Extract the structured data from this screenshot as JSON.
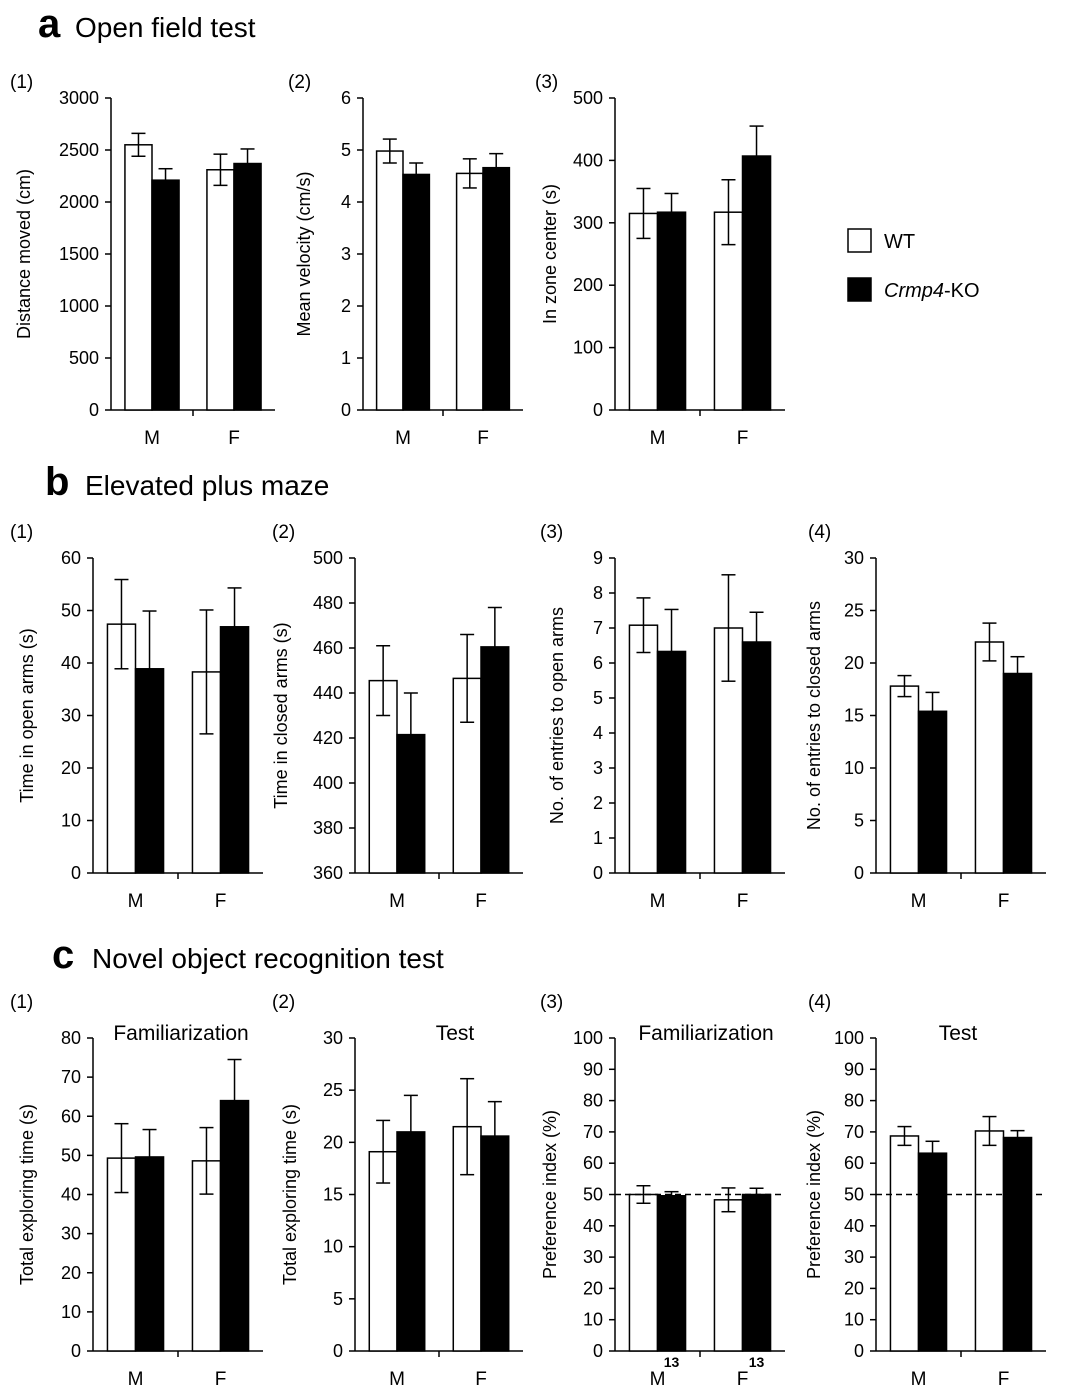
{
  "figure": {
    "sections": [
      {
        "letter": "a",
        "title": "Open field test"
      },
      {
        "letter": "b",
        "title": "Elevated plus maze"
      },
      {
        "letter": "c",
        "title": "Novel object recognition test"
      }
    ],
    "legend": {
      "wt": {
        "label": "WT",
        "color": "#ffffff"
      },
      "ko": {
        "label_italic": "Crmp4",
        "label_suffix": "-KO",
        "color": "#000000"
      }
    }
  },
  "chart_data": [
    {
      "type": "bar",
      "panel": "(1)",
      "section": "a",
      "ylabel": "Distance moved (cm)",
      "categories": [
        "M",
        "F"
      ],
      "ylim": [
        0,
        3000
      ],
      "yticks": [
        "0",
        "500",
        "1000",
        "1500",
        "2000",
        "2500",
        "3000"
      ],
      "series": [
        {
          "name": "WT",
          "values": [
            2550,
            2310
          ],
          "errors": [
            110,
            150
          ]
        },
        {
          "name": "Crmp4-KO",
          "values": [
            2210,
            2370
          ],
          "errors": [
            110,
            140
          ]
        }
      ]
    },
    {
      "type": "bar",
      "panel": "(2)",
      "section": "a",
      "ylabel": "Mean velocity (cm/s)",
      "categories": [
        "M",
        "F"
      ],
      "ylim": [
        0,
        6
      ],
      "yticks": [
        "0",
        "1",
        "2",
        "3",
        "4",
        "5",
        "6"
      ],
      "series": [
        {
          "name": "WT",
          "values": [
            4.98,
            4.55
          ],
          "errors": [
            0.23,
            0.28
          ]
        },
        {
          "name": "Crmp4-KO",
          "values": [
            4.53,
            4.66
          ],
          "errors": [
            0.22,
            0.27
          ]
        }
      ]
    },
    {
      "type": "bar",
      "panel": "(3)",
      "section": "a",
      "ylabel": "In zone center (s)",
      "categories": [
        "M",
        "F"
      ],
      "ylim": [
        0,
        500
      ],
      "yticks": [
        "0",
        "100",
        "200",
        "300",
        "400",
        "500"
      ],
      "series": [
        {
          "name": "WT",
          "values": [
            315,
            317
          ],
          "errors": [
            40,
            52
          ]
        },
        {
          "name": "Crmp4-KO",
          "values": [
            317,
            407
          ],
          "errors": [
            30,
            48
          ]
        }
      ]
    },
    {
      "type": "bar",
      "panel": "(1)",
      "section": "b",
      "ylabel": "Time in open arms (s)",
      "categories": [
        "M",
        "F"
      ],
      "ylim": [
        0,
        60
      ],
      "yticks": [
        "0",
        "10",
        "20",
        "30",
        "40",
        "50",
        "60"
      ],
      "series": [
        {
          "name": "WT",
          "values": [
            47.4,
            38.3
          ],
          "errors": [
            8.5,
            11.8
          ]
        },
        {
          "name": "Crmp4-KO",
          "values": [
            38.9,
            46.9
          ],
          "errors": [
            11.0,
            7.4
          ]
        }
      ]
    },
    {
      "type": "bar",
      "panel": "(2)",
      "section": "b",
      "ylabel": "Time in closed arms (s)",
      "categories": [
        "M",
        "F"
      ],
      "ylim": [
        360,
        500
      ],
      "yticks": [
        "360",
        "380",
        "400",
        "420",
        "440",
        "460",
        "480",
        "500"
      ],
      "series": [
        {
          "name": "WT",
          "values": [
            445.5,
            446.5
          ],
          "errors": [
            15.5,
            19.5
          ]
        },
        {
          "name": "Crmp4-KO",
          "values": [
            421.5,
            460.5
          ],
          "errors": [
            18.5,
            17.5
          ]
        }
      ]
    },
    {
      "type": "bar",
      "panel": "(3)",
      "section": "b",
      "ylabel": "No. of entries to open arms",
      "categories": [
        "M",
        "F"
      ],
      "ylim": [
        0,
        9
      ],
      "yticks": [
        "0",
        "1",
        "2",
        "3",
        "4",
        "5",
        "6",
        "7",
        "8",
        "9"
      ],
      "series": [
        {
          "name": "WT",
          "values": [
            7.08,
            7.0
          ],
          "errors": [
            0.78,
            1.52
          ]
        },
        {
          "name": "Crmp4-KO",
          "values": [
            6.33,
            6.6
          ],
          "errors": [
            1.2,
            0.85
          ]
        }
      ]
    },
    {
      "type": "bar",
      "panel": "(4)",
      "section": "b",
      "ylabel": "No. of entries to closed arms",
      "categories": [
        "M",
        "F"
      ],
      "ylim": [
        0,
        30
      ],
      "yticks": [
        "0",
        "5",
        "10",
        "15",
        "20",
        "25",
        "30"
      ],
      "series": [
        {
          "name": "WT",
          "values": [
            17.8,
            22.0
          ],
          "errors": [
            1.0,
            1.8
          ]
        },
        {
          "name": "Crmp4-KO",
          "values": [
            15.4,
            19.0
          ],
          "errors": [
            1.8,
            1.6
          ]
        }
      ]
    },
    {
      "type": "bar",
      "panel": "(1)",
      "section": "c",
      "title": "Familiarization",
      "ylabel": "Total exploring time (s)",
      "categories": [
        "M",
        "F"
      ],
      "ylim": [
        0,
        80
      ],
      "yticks": [
        "0",
        "10",
        "20",
        "30",
        "40",
        "50",
        "60",
        "70",
        "80"
      ],
      "series": [
        {
          "name": "WT",
          "values": [
            49.3,
            48.6
          ],
          "errors": [
            8.8,
            8.5
          ]
        },
        {
          "name": "Crmp4-KO",
          "values": [
            49.6,
            64.0
          ],
          "errors": [
            7.0,
            10.5
          ]
        }
      ]
    },
    {
      "type": "bar",
      "panel": "(2)",
      "section": "c",
      "title": "Test",
      "ylabel": "Total exploring time (s)",
      "categories": [
        "M",
        "F"
      ],
      "ylim": [
        0,
        30
      ],
      "yticks": [
        "0",
        "5",
        "10",
        "15",
        "20",
        "25",
        "30"
      ],
      "series": [
        {
          "name": "WT",
          "values": [
            19.1,
            21.5
          ],
          "errors": [
            3.0,
            4.6
          ]
        },
        {
          "name": "Crmp4-KO",
          "values": [
            21.0,
            20.6
          ],
          "errors": [
            3.5,
            3.3
          ]
        }
      ]
    },
    {
      "type": "bar",
      "panel": "(3)",
      "section": "c",
      "title": "Familiarization",
      "ylabel": "Preference index (%)",
      "categories": [
        "M",
        "F"
      ],
      "ylim": [
        0,
        100
      ],
      "yticks": [
        "0",
        "10",
        "20",
        "30",
        "40",
        "50",
        "60",
        "70",
        "80",
        "90",
        "100"
      ],
      "reference_line": 50,
      "n_labels": [
        "13",
        "13"
      ],
      "series": [
        {
          "name": "WT",
          "values": [
            50.0,
            48.3
          ],
          "errors": [
            2.8,
            3.8
          ]
        },
        {
          "name": "Crmp4-KO",
          "values": [
            49.6,
            50.0
          ],
          "errors": [
            1.3,
            2.0
          ]
        }
      ]
    },
    {
      "type": "bar",
      "panel": "(4)",
      "section": "c",
      "title": "Test",
      "ylabel": "Preference index (%)",
      "categories": [
        "M",
        "F"
      ],
      "ylim": [
        0,
        100
      ],
      "yticks": [
        "0",
        "10",
        "20",
        "30",
        "40",
        "50",
        "60",
        "70",
        "80",
        "90",
        "100"
      ],
      "reference_line": 50,
      "series": [
        {
          "name": "WT",
          "values": [
            68.7,
            70.3
          ],
          "errors": [
            3.0,
            4.6
          ]
        },
        {
          "name": "Crmp4-KO",
          "values": [
            63.2,
            68.2
          ],
          "errors": [
            3.8,
            2.2
          ]
        }
      ]
    }
  ]
}
